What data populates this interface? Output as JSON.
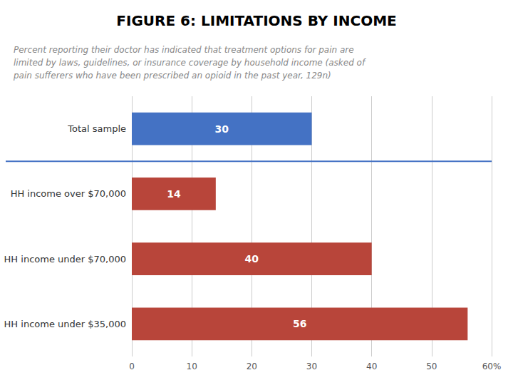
{
  "chart_data": {
    "type": "bar",
    "orientation": "horizontal",
    "title": "FIGURE 6: LIMITATIONS BY INCOME",
    "subtitle": "Percent reporting their doctor has indicated that treatment options for pain are\nlimited by laws, guidelines, or insurance coverage by household income (asked of\npain sufferers who have been prescribed an opioid in the past year, 129n)",
    "categories": [
      "HH income under $35,000",
      "HH income under $70,000",
      "HH income over $70,000",
      "Total sample"
    ],
    "values": [
      56,
      40,
      14,
      30
    ],
    "colors": [
      "#b8453a",
      "#b8453a",
      "#b8453a",
      "#4472c4"
    ],
    "xlim": [
      0,
      60
    ],
    "xticks": [
      0,
      10,
      20,
      30,
      40,
      50,
      {
        "value": 60,
        "label": "60%"
      }
    ],
    "grid": true,
    "data_labels": true
  }
}
